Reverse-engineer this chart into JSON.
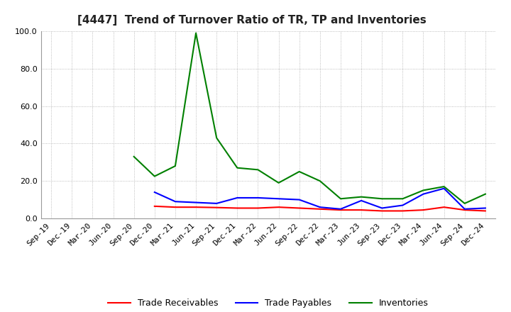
{
  "title": "[4447]  Trend of Turnover Ratio of TR, TP and Inventories",
  "ylim": [
    0,
    100
  ],
  "yticks": [
    0,
    20,
    40,
    60,
    80,
    100
  ],
  "background_color": "#ffffff",
  "grid_color": "#aaaaaa",
  "x_labels": [
    "Sep-19",
    "Dec-19",
    "Mar-20",
    "Jun-20",
    "Sep-20",
    "Dec-20",
    "Mar-21",
    "Jun-21",
    "Sep-21",
    "Dec-21",
    "Mar-22",
    "Jun-22",
    "Sep-22",
    "Dec-22",
    "Mar-23",
    "Jun-23",
    "Sep-23",
    "Dec-23",
    "Mar-24",
    "Jun-24",
    "Sep-24",
    "Dec-24"
  ],
  "trade_receivables": [
    null,
    null,
    null,
    null,
    null,
    6.5,
    6.0,
    6.0,
    5.8,
    5.5,
    5.5,
    6.0,
    5.5,
    5.0,
    4.5,
    4.5,
    4.0,
    4.0,
    4.5,
    6.0,
    4.5,
    4.0
  ],
  "trade_payables": [
    null,
    null,
    null,
    null,
    null,
    14.0,
    9.0,
    8.5,
    8.0,
    11.0,
    11.0,
    10.5,
    10.0,
    6.0,
    5.0,
    9.5,
    5.5,
    7.0,
    13.0,
    16.0,
    5.0,
    5.5
  ],
  "inventories": [
    null,
    null,
    null,
    null,
    33.0,
    22.5,
    28.0,
    99.0,
    43.0,
    27.0,
    26.0,
    19.0,
    25.0,
    20.0,
    10.5,
    11.5,
    10.5,
    10.5,
    15.0,
    17.0,
    8.0,
    13.0
  ],
  "tr_color": "#ff0000",
  "tp_color": "#0000ff",
  "inv_color": "#008000",
  "legend_labels": [
    "Trade Receivables",
    "Trade Payables",
    "Inventories"
  ]
}
